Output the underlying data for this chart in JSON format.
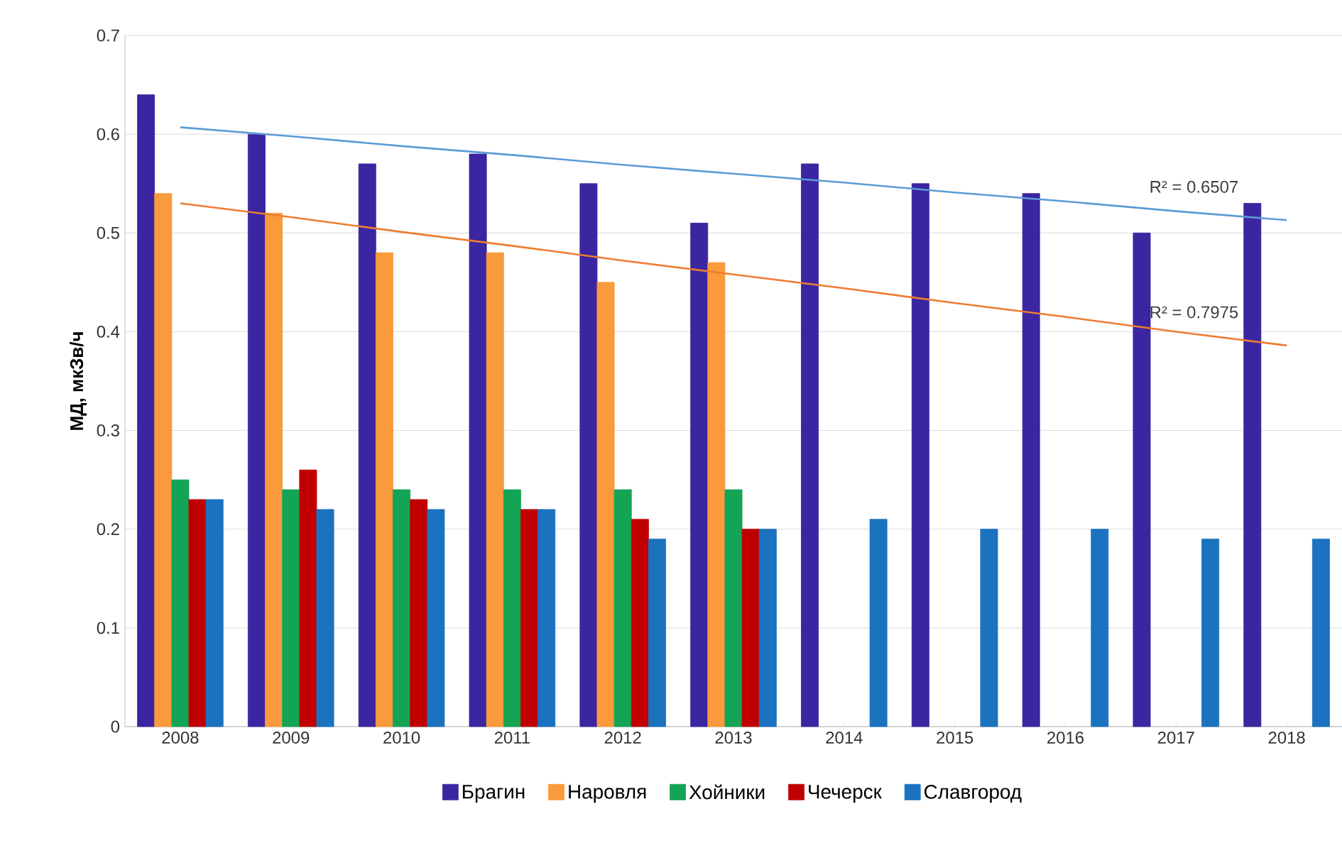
{
  "chart_data": {
    "type": "bar",
    "ylabel": "МД, мкЗв/ч",
    "categories": [
      "2008",
      "2009",
      "2010",
      "2011",
      "2012",
      "2013",
      "2014",
      "2015",
      "2016",
      "2017",
      "2018"
    ],
    "series": [
      {
        "name": "Брагин",
        "color": "#3b25a0",
        "values": [
          0.64,
          0.6,
          0.57,
          0.58,
          0.55,
          0.51,
          0.57,
          0.55,
          0.54,
          0.5,
          0.53
        ]
      },
      {
        "name": "Наровля",
        "color": "#f99a3c",
        "values": [
          0.54,
          0.52,
          0.48,
          0.48,
          0.45,
          0.47,
          null,
          null,
          null,
          null,
          null
        ]
      },
      {
        "name": "Хойники",
        "color": "#14a455",
        "values": [
          0.25,
          0.24,
          0.24,
          0.24,
          0.24,
          0.24,
          null,
          null,
          null,
          null,
          null
        ]
      },
      {
        "name": "Чечерск",
        "color": "#c00000",
        "values": [
          0.23,
          0.26,
          0.23,
          0.22,
          0.21,
          0.2,
          null,
          null,
          null,
          null,
          null
        ]
      },
      {
        "name": "Славгород",
        "color": "#1b72bf",
        "values": [
          0.23,
          0.22,
          0.22,
          0.22,
          0.19,
          0.2,
          0.21,
          0.2,
          0.2,
          0.19,
          0.19
        ]
      },
      {
        "type": "line",
        "color": "#5b9bd5",
        "values": [
          0.607,
          0.598,
          0.588,
          0.579,
          0.569,
          0.56,
          0.551,
          0.541,
          0.532,
          0.522,
          0.513
        ]
      },
      {
        "type": "line",
        "color": "#ed7d31",
        "values": [
          0.53,
          0.516,
          0.501,
          0.487,
          0.472,
          0.458,
          0.444,
          0.429,
          0.415,
          0.4,
          0.386
        ]
      }
    ],
    "annotations": [
      "R² = 0.6507",
      "R² = 0.7975"
    ],
    "ylim": [
      0,
      0.7
    ],
    "yticks": [
      0,
      0.1,
      0.2,
      0.3,
      0.4,
      0.5,
      0.6,
      0.7
    ],
    "grid": "y",
    "legend": "bottom"
  }
}
